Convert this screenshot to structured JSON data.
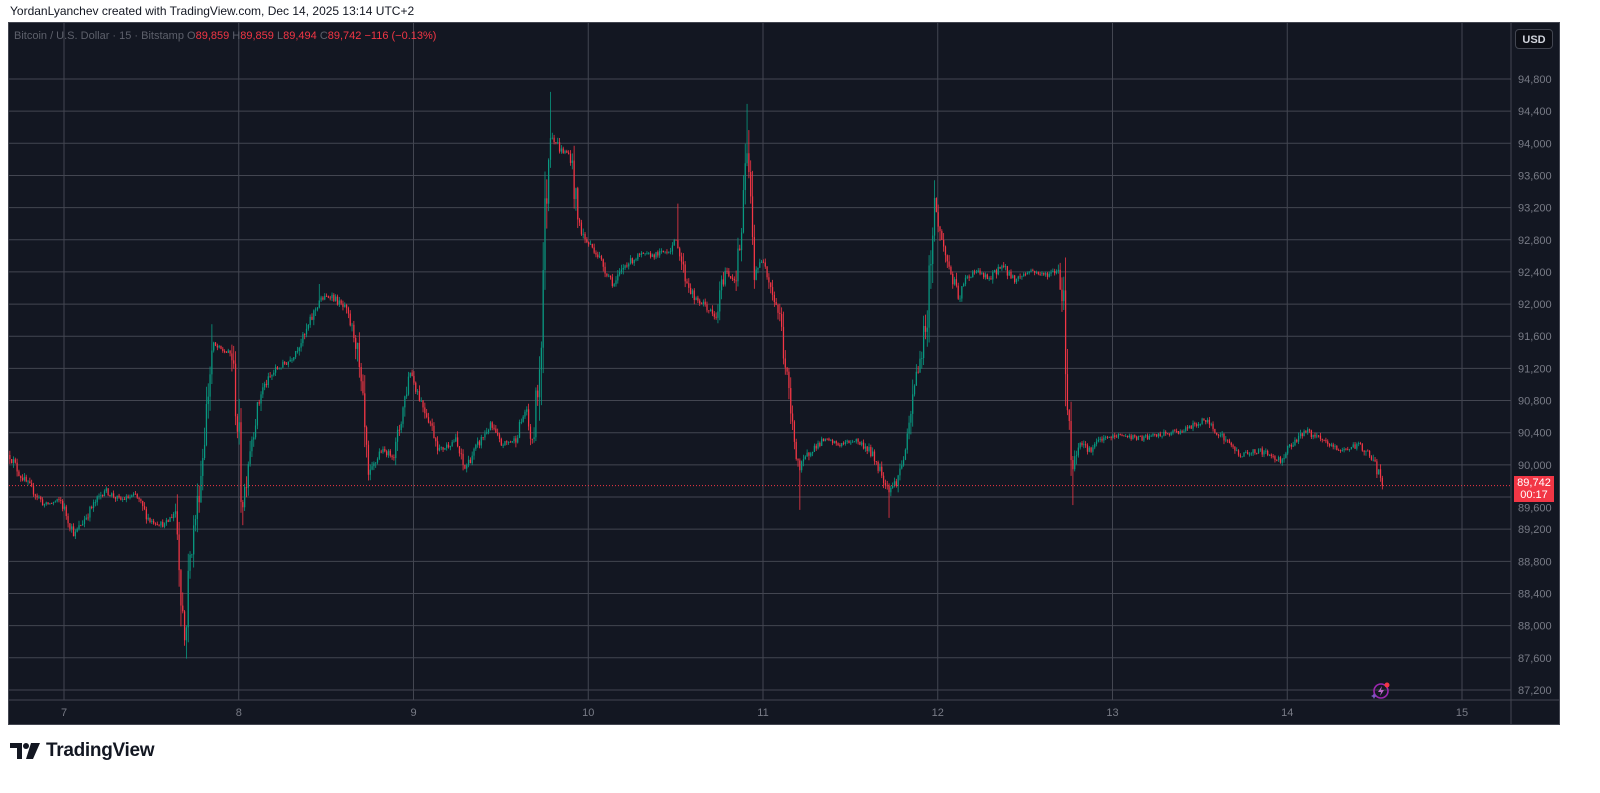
{
  "header": {
    "credit": "YordanLyanchev created with TradingView.com, Dec 14, 2025 13:14 UTC+2"
  },
  "legend": {
    "symbol": "Bitcoin / U.S. Dollar · 15 · Bitstamp",
    "o_label": "O",
    "open": "89,859",
    "h_label": "H",
    "high": "89,859",
    "l_label": "L",
    "low": "89,494",
    "c_label": "C",
    "close": "89,742",
    "change": "−116 (−0.13%)"
  },
  "currency_button": "USD",
  "price_tag": {
    "price": "89,742",
    "countdown": "00:17"
  },
  "brand": "TradingView",
  "colors": {
    "background": "#131722",
    "up": "#089981",
    "down": "#f23645",
    "grid": "#434651",
    "axis_text": "#787b86"
  },
  "chart_data": {
    "type": "candlestick",
    "symbol": "BTCUSD",
    "interval_minutes": 15,
    "x_unit": "day of December 2025",
    "x_ticks": [
      "7",
      "8",
      "9",
      "10",
      "11",
      "12",
      "13",
      "14",
      "15"
    ],
    "y_ticks": [
      "87,200",
      "87,600",
      "88,000",
      "88,400",
      "88,800",
      "89,200",
      "89,600",
      "90,000",
      "90,400",
      "90,800",
      "91,200",
      "91,600",
      "92,000",
      "92,400",
      "92,800",
      "93,200",
      "93,600",
      "94,000",
      "94,400",
      "94,800"
    ],
    "ylim": [
      87200,
      94800
    ],
    "grid": true,
    "last_price": 89742,
    "price_path": [
      [
        6.69,
        90123
      ],
      [
        6.75,
        89870
      ],
      [
        6.89,
        89500
      ],
      [
        6.98,
        89560
      ],
      [
        7.06,
        89130
      ],
      [
        7.15,
        89440
      ],
      [
        7.23,
        89690
      ],
      [
        7.32,
        89560
      ],
      [
        7.41,
        89620
      ],
      [
        7.49,
        89310
      ],
      [
        7.58,
        89250
      ],
      [
        7.64,
        89440
      ],
      [
        7.66,
        88820
      ],
      [
        7.69,
        87820
      ],
      [
        7.72,
        88820
      ],
      [
        7.78,
        89810
      ],
      [
        7.82,
        90800
      ],
      [
        7.85,
        91490
      ],
      [
        7.9,
        91430
      ],
      [
        7.96,
        91370
      ],
      [
        8.0,
        90310
      ],
      [
        8.02,
        89440
      ],
      [
        8.06,
        90180
      ],
      [
        8.13,
        90930
      ],
      [
        8.21,
        91180
      ],
      [
        8.29,
        91300
      ],
      [
        8.38,
        91620
      ],
      [
        8.46,
        92050
      ],
      [
        8.53,
        92110
      ],
      [
        8.61,
        91930
      ],
      [
        8.67,
        91550
      ],
      [
        8.71,
        90680
      ],
      [
        8.74,
        89810
      ],
      [
        8.81,
        90180
      ],
      [
        8.89,
        90120
      ],
      [
        8.98,
        91180
      ],
      [
        9.04,
        90810
      ],
      [
        9.09,
        90560
      ],
      [
        9.15,
        90180
      ],
      [
        9.24,
        90310
      ],
      [
        9.29,
        89940
      ],
      [
        9.35,
        90180
      ],
      [
        9.44,
        90500
      ],
      [
        9.5,
        90250
      ],
      [
        9.58,
        90310
      ],
      [
        9.64,
        90680
      ],
      [
        9.68,
        90250
      ],
      [
        9.72,
        91180
      ],
      [
        9.75,
        92920
      ],
      [
        9.78,
        94170
      ],
      [
        9.84,
        93920
      ],
      [
        9.9,
        93850
      ],
      [
        9.94,
        93050
      ],
      [
        9.98,
        92800
      ],
      [
        10.04,
        92670
      ],
      [
        10.1,
        92420
      ],
      [
        10.15,
        92240
      ],
      [
        10.21,
        92490
      ],
      [
        10.3,
        92610
      ],
      [
        10.38,
        92610
      ],
      [
        10.46,
        92670
      ],
      [
        10.51,
        92800
      ],
      [
        10.55,
        92360
      ],
      [
        10.61,
        92050
      ],
      [
        10.67,
        91990
      ],
      [
        10.73,
        91800
      ],
      [
        10.78,
        92420
      ],
      [
        10.84,
        92300
      ],
      [
        10.88,
        92920
      ],
      [
        10.91,
        93920
      ],
      [
        10.95,
        92420
      ],
      [
        11.01,
        92550
      ],
      [
        11.05,
        92180
      ],
      [
        11.1,
        91800
      ],
      [
        11.13,
        91180
      ],
      [
        11.17,
        90430
      ],
      [
        11.21,
        89940
      ],
      [
        11.27,
        90180
      ],
      [
        11.35,
        90310
      ],
      [
        11.44,
        90250
      ],
      [
        11.53,
        90310
      ],
      [
        11.61,
        90180
      ],
      [
        11.67,
        89940
      ],
      [
        11.72,
        89690
      ],
      [
        11.77,
        89810
      ],
      [
        11.83,
        90310
      ],
      [
        11.87,
        91060
      ],
      [
        11.91,
        91430
      ],
      [
        11.94,
        91930
      ],
      [
        11.98,
        93300
      ],
      [
        12.02,
        92800
      ],
      [
        12.07,
        92420
      ],
      [
        12.12,
        92050
      ],
      [
        12.16,
        92300
      ],
      [
        12.21,
        92420
      ],
      [
        12.3,
        92300
      ],
      [
        12.36,
        92490
      ],
      [
        12.44,
        92300
      ],
      [
        12.53,
        92420
      ],
      [
        12.61,
        92360
      ],
      [
        12.69,
        92420
      ],
      [
        12.72,
        92050
      ],
      [
        12.74,
        90930
      ],
      [
        12.77,
        89940
      ],
      [
        12.81,
        90310
      ],
      [
        12.87,
        90180
      ],
      [
        12.93,
        90310
      ],
      [
        13.04,
        90370
      ],
      [
        13.16,
        90330
      ],
      [
        13.27,
        90370
      ],
      [
        13.41,
        90430
      ],
      [
        13.53,
        90560
      ],
      [
        13.62,
        90370
      ],
      [
        13.73,
        90120
      ],
      [
        13.84,
        90180
      ],
      [
        13.96,
        90060
      ],
      [
        14.02,
        90250
      ],
      [
        14.1,
        90430
      ],
      [
        14.19,
        90310
      ],
      [
        14.3,
        90180
      ],
      [
        14.42,
        90250
      ],
      [
        14.49,
        90060
      ],
      [
        14.55,
        89742
      ]
    ],
    "notable_extremes": [
      [
        7.69,
        87750
      ],
      [
        7.85,
        91750
      ],
      [
        8.02,
        89250
      ],
      [
        8.46,
        92250
      ],
      [
        9.78,
        94640
      ],
      [
        10.51,
        93250
      ],
      [
        10.91,
        94490
      ],
      [
        11.21,
        89440
      ],
      [
        11.72,
        89340
      ],
      [
        11.98,
        93540
      ],
      [
        12.77,
        89500
      ]
    ]
  }
}
